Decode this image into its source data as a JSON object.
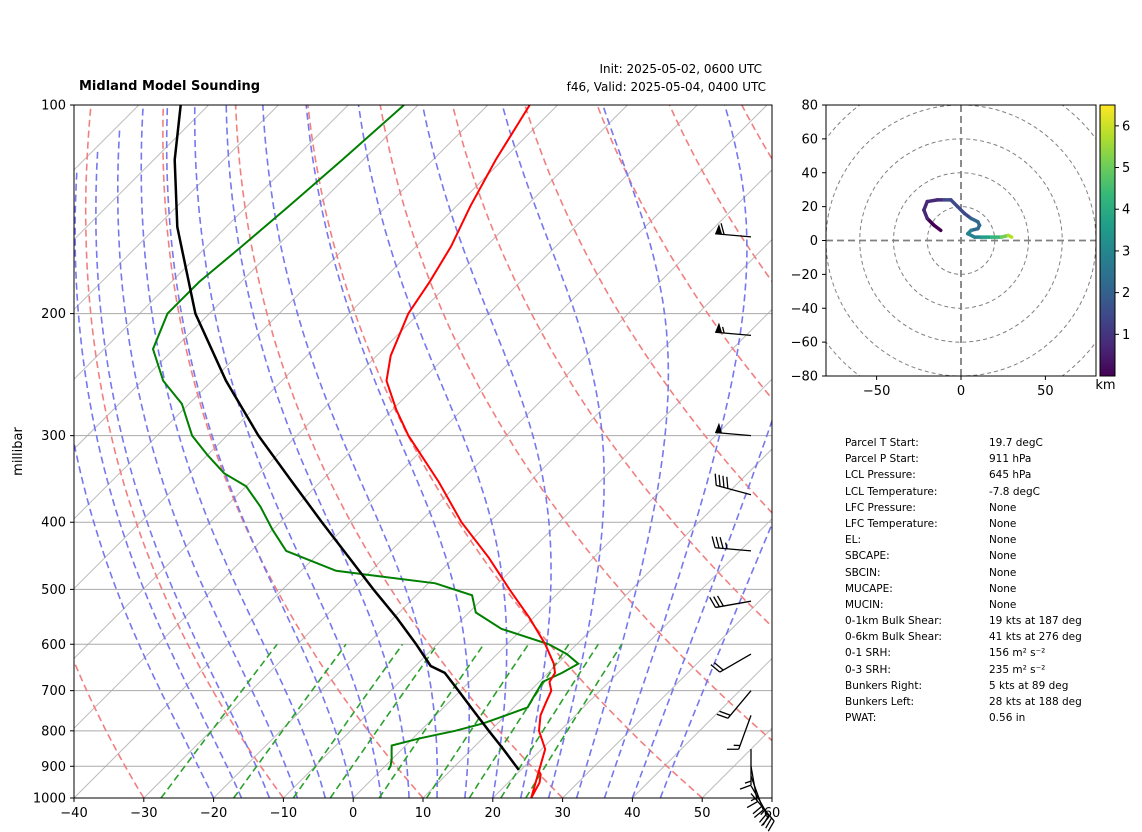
{
  "header": {
    "title": "Midland Model Sounding",
    "init": "Init: 2025-05-02, 0600 UTC",
    "valid": "f46, Valid: 2025-05-04, 0400 UTC"
  },
  "colors": {
    "temperature": "#ff0000",
    "dewpoint": "#007f00",
    "parcel": "#000000",
    "dry_adiabat": "#f08080",
    "moist_adiabat": "#7777ee",
    "mixing_ratio": "#2ca02c",
    "isotherm": "#bbbbbb",
    "isobar": "#aaaaaa"
  },
  "chart_data": [
    {
      "type": "line",
      "name": "skew-t",
      "ylabel": "millibar",
      "xlabel": "",
      "xlim": [
        -40,
        60
      ],
      "ylim": [
        1000,
        100
      ],
      "y_scale": "log",
      "grid": true,
      "x_ticks": [
        "−40",
        "−30",
        "−20",
        "−10",
        "0",
        "10",
        "20",
        "30",
        "40",
        "50",
        "60"
      ],
      "y_ticks": [
        "100",
        "200",
        "300",
        "400",
        "500",
        "600",
        "700",
        "800",
        "900",
        "1000"
      ],
      "series": [
        {
          "key": "temperature",
          "pressure": [
            911,
            925,
            950,
            975,
            1000,
            850,
            800,
            760,
            730,
            700,
            680,
            660,
            640,
            600,
            550,
            500,
            450,
            400,
            350,
            300,
            275,
            250,
            230,
            200,
            180,
            160,
            140,
            120,
            100
          ],
          "temp": [
            22.5,
            23.5,
            24.5,
            25.0,
            25.5,
            20.5,
            17.0,
            15.0,
            14.0,
            13.0,
            11.5,
            11.0,
            9.5,
            5.5,
            -0.5,
            -7.5,
            -15.0,
            -24.0,
            -33.0,
            -44.0,
            -49.5,
            -55.0,
            -58.0,
            -61.5,
            -63.0,
            -65.0,
            -68.0,
            -71.0,
            -74.0
          ]
        },
        {
          "key": "dewpoint",
          "pressure": [
            911,
            900,
            880,
            860,
            840,
            820,
            800,
            780,
            760,
            740,
            720,
            700,
            680,
            660,
            640,
            620,
            600,
            570,
            540,
            510,
            490,
            470,
            440,
            410,
            380,
            355,
            340,
            320,
            300,
            270,
            250,
            225,
            200,
            180,
            160,
            140,
            120,
            100
          ],
          "dewp": [
            1.0,
            0.8,
            0.0,
            -1.0,
            -2.0,
            1.0,
            5.0,
            8.0,
            10.0,
            12.0,
            11.5,
            11.0,
            10.5,
            12.0,
            13.0,
            10.0,
            6.0,
            -3.0,
            -9.0,
            -12.0,
            -19.0,
            -35.0,
            -45.0,
            -50.0,
            -55.0,
            -60.0,
            -65.0,
            -70.0,
            -75.0,
            -81.0,
            -87.0,
            -93.0,
            -96.0,
            -96.0,
            -95.0,
            -94.0,
            -93.0,
            -92.0
          ]
        },
        {
          "key": "parcel",
          "pressure": [
            911,
            850,
            800,
            750,
            700,
            660,
            645,
            600,
            550,
            500,
            450,
            400,
            350,
            300,
            250,
            200,
            150,
            120,
            100
          ],
          "temp": [
            19.7,
            14.5,
            9.8,
            4.9,
            -0.3,
            -4.8,
            -7.8,
            -13.0,
            -19.5,
            -27.0,
            -35.0,
            -44.0,
            -54.0,
            -65.5,
            -78.0,
            -92.0,
            -107.0,
            -117.0,
            -124.0
          ]
        }
      ],
      "wind_barbs": [
        {
          "pressure": 155,
          "speed_kt": 60,
          "dir_deg": 275
        },
        {
          "pressure": 215,
          "speed_kt": 55,
          "dir_deg": 275
        },
        {
          "pressure": 300,
          "speed_kt": 50,
          "dir_deg": 275
        },
        {
          "pressure": 365,
          "speed_kt": 40,
          "dir_deg": 285
        },
        {
          "pressure": 440,
          "speed_kt": 35,
          "dir_deg": 275
        },
        {
          "pressure": 520,
          "speed_kt": 30,
          "dir_deg": 260
        },
        {
          "pressure": 620,
          "speed_kt": 20,
          "dir_deg": 240
        },
        {
          "pressure": 700,
          "speed_kt": 20,
          "dir_deg": 220
        },
        {
          "pressure": 760,
          "speed_kt": 15,
          "dir_deg": 200
        },
        {
          "pressure": 850,
          "speed_kt": 15,
          "dir_deg": 180
        },
        {
          "pressure": 900,
          "speed_kt": 15,
          "dir_deg": 170
        },
        {
          "pressure": 930,
          "speed_kt": 20,
          "dir_deg": 160
        },
        {
          "pressure": 960,
          "speed_kt": 25,
          "dir_deg": 150
        },
        {
          "pressure": 985,
          "speed_kt": 30,
          "dir_deg": 140
        }
      ]
    },
    {
      "type": "line",
      "name": "hodograph",
      "xlim": [
        -80,
        80
      ],
      "ylim": [
        -80,
        80
      ],
      "x_ticks": [
        "−50",
        "0",
        "50"
      ],
      "y_ticks": [
        "80",
        "60",
        "40",
        "20",
        "0",
        "−20",
        "−40",
        "−60",
        "−80"
      ],
      "rings": [
        20,
        40,
        60,
        80,
        100
      ],
      "colorbar": {
        "label": "km",
        "ticks": [
          "1",
          "2",
          "3",
          "4",
          "5",
          "6"
        ],
        "min": 0,
        "max": 6.5
      },
      "u": [
        -12,
        -16,
        -20,
        -22,
        -20,
        -14,
        -10,
        -6,
        -2,
        2,
        6,
        10,
        11,
        10,
        6,
        4,
        8,
        12,
        18,
        24,
        28,
        30
      ],
      "v": [
        6,
        9,
        13,
        18,
        23,
        24,
        24,
        24,
        20,
        16,
        13,
        11,
        9,
        7,
        6,
        4,
        2,
        2,
        2,
        2,
        3,
        2
      ],
      "height_km": [
        0.05,
        0.2,
        0.4,
        0.6,
        0.8,
        1.0,
        1.15,
        1.3,
        1.5,
        1.7,
        1.9,
        2.1,
        2.3,
        2.5,
        2.7,
        2.9,
        3.2,
        3.6,
        4.2,
        5.0,
        5.7,
        6.3
      ]
    }
  ],
  "params": [
    {
      "label": "Parcel T Start:",
      "value": "19.7 degC"
    },
    {
      "label": "Parcel P Start:",
      "value": "911 hPa"
    },
    {
      "label": "LCL Pressure:",
      "value": "645 hPa"
    },
    {
      "label": "LCL Temperature:",
      "value": "-7.8 degC"
    },
    {
      "label": "LFC Pressure:",
      "value": "None"
    },
    {
      "label": "LFC Temperature:",
      "value": "None"
    },
    {
      "label": "EL:",
      "value": "None"
    },
    {
      "label": "SBCAPE:",
      "value": "None"
    },
    {
      "label": "SBCIN:",
      "value": "None"
    },
    {
      "label": "MUCAPE:",
      "value": "None"
    },
    {
      "label": "MUCIN:",
      "value": "None"
    },
    {
      "label": "0-1km Bulk Shear:",
      "value": "19 kts at 187 deg"
    },
    {
      "label": "0-6km Bulk Shear:",
      "value": "41 kts at 276 deg"
    },
    {
      "label": "0-1 SRH:",
      "value": "156 m² s⁻²"
    },
    {
      "label": "0-3 SRH:",
      "value": "235 m² s⁻²"
    },
    {
      "label": "Bunkers Right:",
      "value": "5 kts at 89 deg"
    },
    {
      "label": "Bunkers Left:",
      "value": "28 kts at 188 deg"
    },
    {
      "label": "PWAT:",
      "value": "0.56 in"
    }
  ]
}
